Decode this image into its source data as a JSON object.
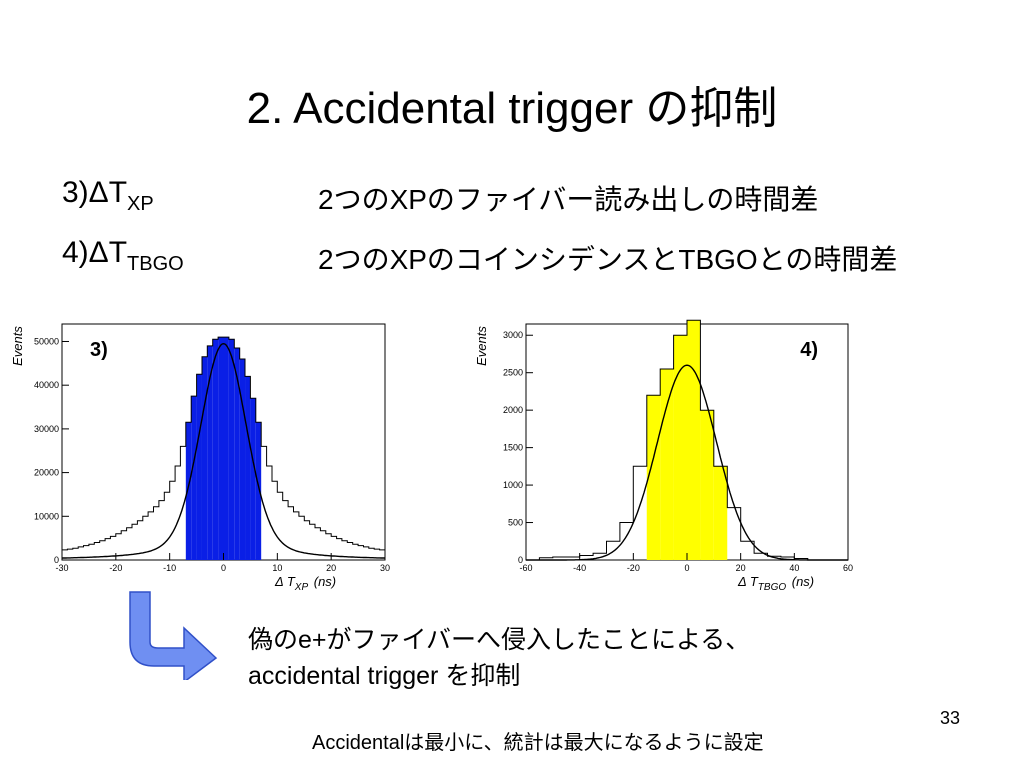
{
  "slide": {
    "title": "2. Accidental trigger の抑制",
    "rows": [
      {
        "label": "3)ΔT",
        "sub": "XP",
        "desc": "2つのXPのファイバー読み出しの時間差"
      },
      {
        "label": "4)ΔT",
        "sub": "TBGO",
        "desc": "2つのXPのコインシデンスとTBGOとの時間差"
      }
    ],
    "note": {
      "line1": "偽のe+がファイバーへ侵入したことによる、",
      "line2": "accidental trigger を抑制"
    },
    "footer": "Accidentalは最小に、統計は最大になるように設定",
    "page_number": "33",
    "arrow_icon": "curved-down-right-arrow-icon",
    "arrow_color": "#6f8ff2"
  },
  "chart_data": [
    {
      "type": "bar",
      "panel_label": "3)",
      "ylabel": "Events",
      "xlabel_main": "Δ T",
      "xlabel_sub": "XP",
      "xlabel_unit": "(ns)",
      "xlim": [
        -30,
        30
      ],
      "ylim": [
        0,
        54000
      ],
      "xticks": [
        -30,
        -20,
        -10,
        0,
        10,
        20,
        30
      ],
      "yticks": [
        0,
        10000,
        20000,
        30000,
        40000,
        50000
      ],
      "bin_width": 1,
      "bin_start": -30,
      "counts": [
        2300,
        2500,
        2700,
        3000,
        3300,
        3600,
        4000,
        4400,
        4900,
        5400,
        6000,
        6700,
        7400,
        8200,
        9000,
        10000,
        11000,
        12200,
        13600,
        15500,
        18000,
        21500,
        26000,
        31500,
        37500,
        42500,
        46500,
        49000,
        50500,
        51000,
        51000,
        50500,
        48500,
        46000,
        42000,
        37000,
        31500,
        26000,
        21500,
        18000,
        15500,
        13600,
        12200,
        11000,
        10000,
        9000,
        8200,
        7400,
        6700,
        6000,
        5400,
        4900,
        4400,
        4000,
        3600,
        3300,
        3000,
        2700,
        2500,
        2300
      ],
      "fill_range": [
        -7,
        7
      ],
      "fill_color": "#0a1fe6",
      "fit": {
        "shape": "voigt",
        "center": 0,
        "peak": 49500,
        "sigma": 4.2,
        "gamma": 6.5,
        "frac": 0.8
      }
    },
    {
      "type": "bar",
      "panel_label": "4)",
      "ylabel": "Events",
      "xlabel_main": "Δ T",
      "xlabel_sub": "TBGO",
      "xlabel_unit": "(ns)",
      "xlim": [
        -60,
        60
      ],
      "ylim": [
        0,
        3150
      ],
      "xticks": [
        -60,
        -40,
        -20,
        0,
        20,
        40,
        60
      ],
      "yticks": [
        0,
        500,
        1000,
        1500,
        2000,
        2500,
        3000
      ],
      "bin_width": 5,
      "bin_start": -60,
      "counts": [
        0,
        30,
        40,
        40,
        60,
        90,
        250,
        500,
        1250,
        2200,
        2550,
        3000,
        3200,
        2000,
        1250,
        700,
        250,
        90,
        50,
        40,
        20,
        0,
        0,
        0
      ],
      "fill_range": [
        -15,
        15
      ],
      "fill_color": "#ffff00",
      "fit": {
        "shape": "gauss",
        "center": 0,
        "peak": 2600,
        "sigma": 11
      }
    }
  ]
}
